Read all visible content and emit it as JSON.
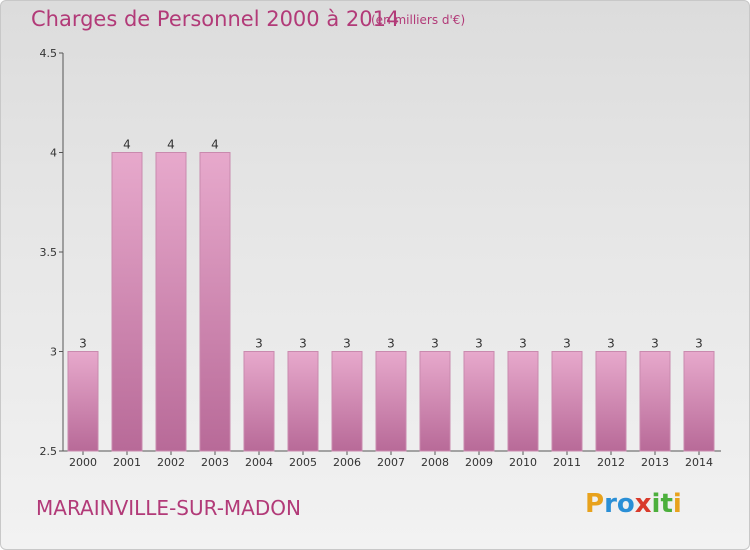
{
  "header": {
    "title": "Charges de Personnel 2000 à 2014",
    "subtitle": "(en milliers d'€)"
  },
  "footer": {
    "commune": "MARAINVILLE-SUR-MADON",
    "logo_letters": [
      "P",
      "r",
      "o",
      "x",
      "i",
      "t",
      "i"
    ],
    "logo_colors": [
      "#e8a21c",
      "#2a8fd6",
      "#2a8fd6",
      "#d93a2b",
      "#4caf3c",
      "#4caf3c",
      "#e8a21c"
    ]
  },
  "colors": {
    "bar": "#d890b8",
    "bar_dark": "#b86a98",
    "accent": "#b23a78"
  },
  "chart_data": {
    "type": "bar",
    "categories": [
      "2000",
      "2001",
      "2002",
      "2003",
      "2004",
      "2005",
      "2006",
      "2007",
      "2008",
      "2009",
      "2010",
      "2011",
      "2012",
      "2013",
      "2014"
    ],
    "values": [
      3,
      4,
      4,
      4,
      3,
      3,
      3,
      3,
      3,
      3,
      3,
      3,
      3,
      3,
      3
    ],
    "value_labels": [
      "3",
      "4",
      "4",
      "4",
      "3",
      "3",
      "3",
      "3",
      "3",
      "3",
      "3",
      "3",
      "3",
      "3",
      "3"
    ],
    "ylim": [
      2.5,
      4.5
    ],
    "yticks": [
      2.5,
      3,
      3.5,
      4,
      4.5
    ],
    "ytick_labels": [
      "2.5",
      "3",
      "3.5",
      "4",
      "4.5"
    ],
    "xlabel": "",
    "ylabel": "",
    "grid": false,
    "legend": "none"
  }
}
